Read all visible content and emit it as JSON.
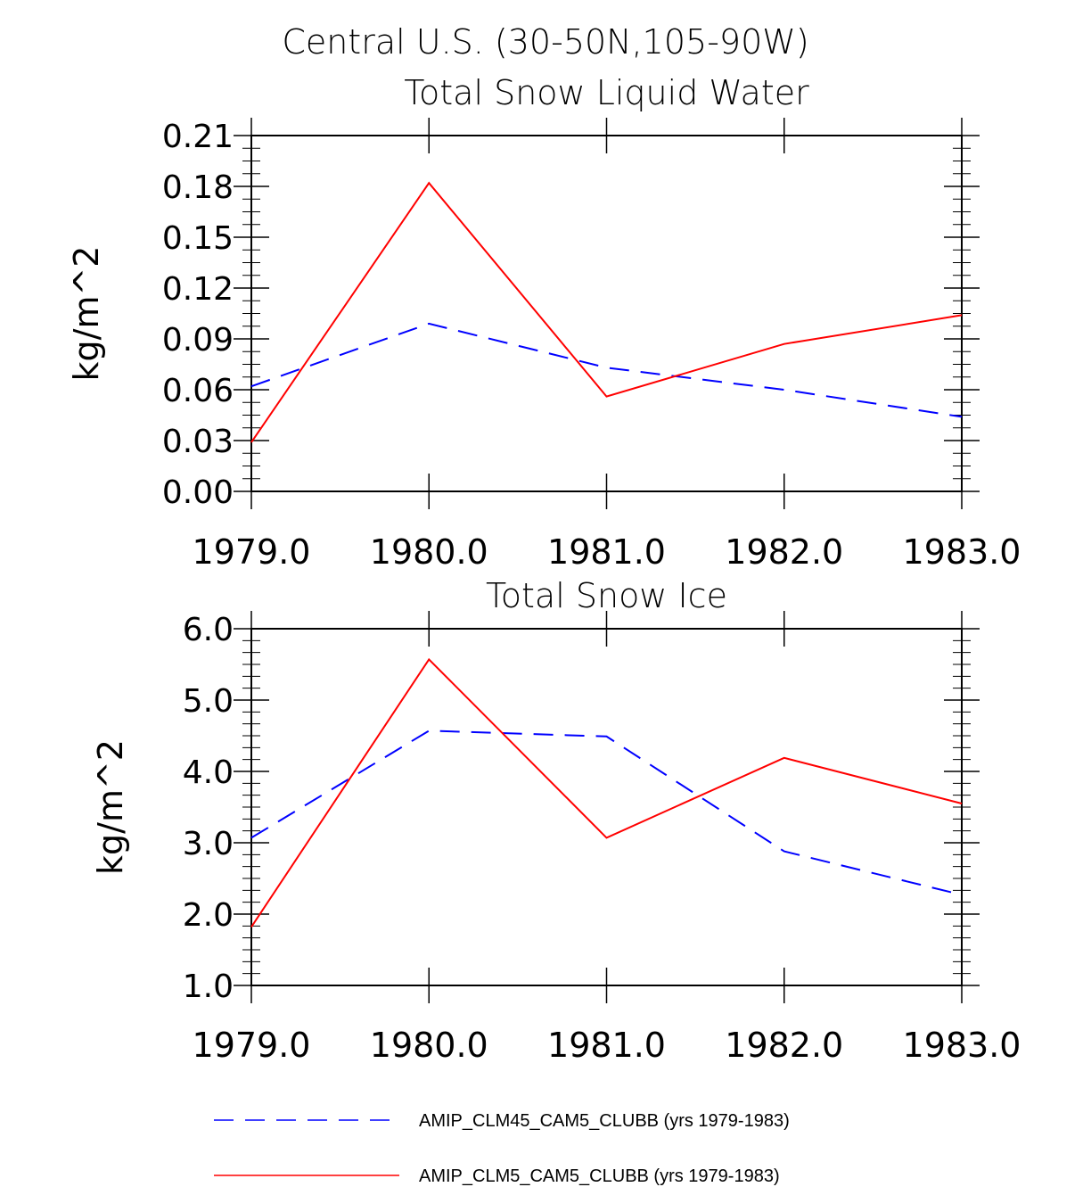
{
  "title_line1": "Central U.S. (30-50N,105-90W)",
  "legend": [
    {
      "label": "AMIP_CLM45_CAM5_CLUBB (yrs 1979-1983)",
      "color": "#0000ff",
      "dash": "dashed"
    },
    {
      "label": "AMIP_CLM5_CAM5_CLUBB (yrs 1979-1983)",
      "color": "#ff0000",
      "dash": "solid"
    }
  ],
  "chart_data": [
    {
      "type": "line",
      "title": "Total Snow Liquid Water",
      "xlabel": "",
      "ylabel": "kg/m^2",
      "x": [
        1979.0,
        1980.0,
        1981.0,
        1982.0,
        1983.0
      ],
      "xlim": [
        1979.0,
        1983.0
      ],
      "ylim": [
        0.0,
        0.21
      ],
      "yticks": [
        0.0,
        0.03,
        0.06,
        0.09,
        0.12,
        0.15,
        0.18,
        0.21
      ],
      "ytick_labels": [
        "0.00",
        "0.03",
        "0.06",
        "0.09",
        "0.12",
        "0.15",
        "0.18",
        "0.21"
      ],
      "xtick_labels": [
        "1979.0",
        "1980.0",
        "1981.0",
        "1982.0",
        "1983.0"
      ],
      "series": [
        {
          "name": "AMIP_CLM45_CAM5_CLUBB (yrs 1979-1983)",
          "color": "#0000ff",
          "dash": "dashed",
          "values": [
            0.062,
            0.099,
            0.073,
            0.06,
            0.044
          ]
        },
        {
          "name": "AMIP_CLM5_CAM5_CLUBB (yrs 1979-1983)",
          "color": "#ff0000",
          "dash": "solid",
          "values": [
            0.029,
            0.182,
            0.056,
            0.087,
            0.104
          ]
        }
      ]
    },
    {
      "type": "line",
      "title": "Total Snow Ice",
      "xlabel": "",
      "ylabel": "kg/m^2",
      "x": [
        1979.0,
        1980.0,
        1981.0,
        1982.0,
        1983.0
      ],
      "xlim": [
        1979.0,
        1983.0
      ],
      "ylim": [
        1.0,
        6.0
      ],
      "yticks": [
        1.0,
        2.0,
        3.0,
        4.0,
        5.0,
        6.0
      ],
      "ytick_labels": [
        "1.0",
        "2.0",
        "3.0",
        "4.0",
        "5.0",
        "6.0"
      ],
      "xtick_labels": [
        "1979.0",
        "1980.0",
        "1981.0",
        "1982.0",
        "1983.0"
      ],
      "series": [
        {
          "name": "AMIP_CLM45_CAM5_CLUBB (yrs 1979-1983)",
          "color": "#0000ff",
          "dash": "dashed",
          "values": [
            3.07,
            4.57,
            4.49,
            2.88,
            2.27
          ]
        },
        {
          "name": "AMIP_CLM5_CAM5_CLUBB (yrs 1979-1983)",
          "color": "#ff0000",
          "dash": "solid",
          "values": [
            1.82,
            5.57,
            3.07,
            4.19,
            3.55
          ]
        }
      ]
    }
  ]
}
